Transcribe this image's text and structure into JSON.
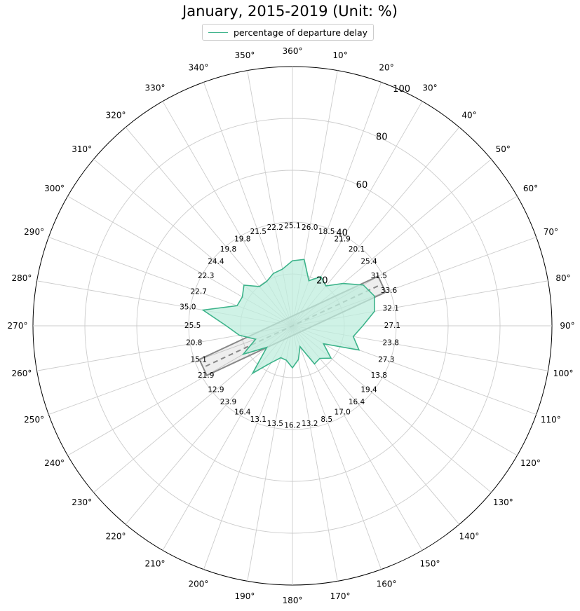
{
  "chart_data": {
    "type": "polar-area",
    "title": "January, 2015-2019 (Unit: %)",
    "legend": {
      "entries": [
        "percentage of departure delay"
      ],
      "placement": "top-center"
    },
    "series": [
      {
        "name": "percentage of departure delay",
        "color": "#3cb38a",
        "fill": "#bfeedd",
        "direction_deg": [
          0,
          10,
          20,
          30,
          40,
          50,
          60,
          70,
          80,
          90,
          100,
          110,
          120,
          130,
          140,
          150,
          160,
          170,
          180,
          190,
          200,
          210,
          220,
          230,
          240,
          250,
          260,
          270,
          280,
          290,
          300,
          310,
          320,
          330,
          340,
          350
        ],
        "values": [
          25.1,
          26.0,
          18.5,
          21.9,
          20.1,
          25.4,
          31.5,
          33.6,
          32.1,
          27.1,
          23.8,
          27.3,
          13.8,
          19.4,
          16.4,
          17.0,
          8.5,
          13.2,
          16.2,
          13.5,
          13.1,
          16.4,
          23.9,
          12.9,
          21.9,
          15.1,
          20.8,
          25.5,
          35.0,
          22.7,
          22.3,
          24.4,
          19.8,
          19.8,
          21.5,
          22.2
        ]
      }
    ],
    "angular_ticks": [
      "360°",
      "10°",
      "20°",
      "30°",
      "40°",
      "50°",
      "60°",
      "70°",
      "80°",
      "90°",
      "100°",
      "110°",
      "120°",
      "130°",
      "140°",
      "150°",
      "160°",
      "170°",
      "180°",
      "190°",
      "200°",
      "210°",
      "220°",
      "230°",
      "240°",
      "250°",
      "260°",
      "270°",
      "280°",
      "290°",
      "300°",
      "310°",
      "320°",
      "330°",
      "340°",
      "350°"
    ],
    "radial_ticks": [
      20,
      40,
      60,
      80,
      100
    ],
    "rlim": [
      0,
      100
    ],
    "zero_location": "N",
    "direction": "clockwise",
    "grid": true,
    "runway": {
      "heading_deg": 65,
      "reciprocal_deg": 245,
      "centerline": "dashed"
    }
  }
}
